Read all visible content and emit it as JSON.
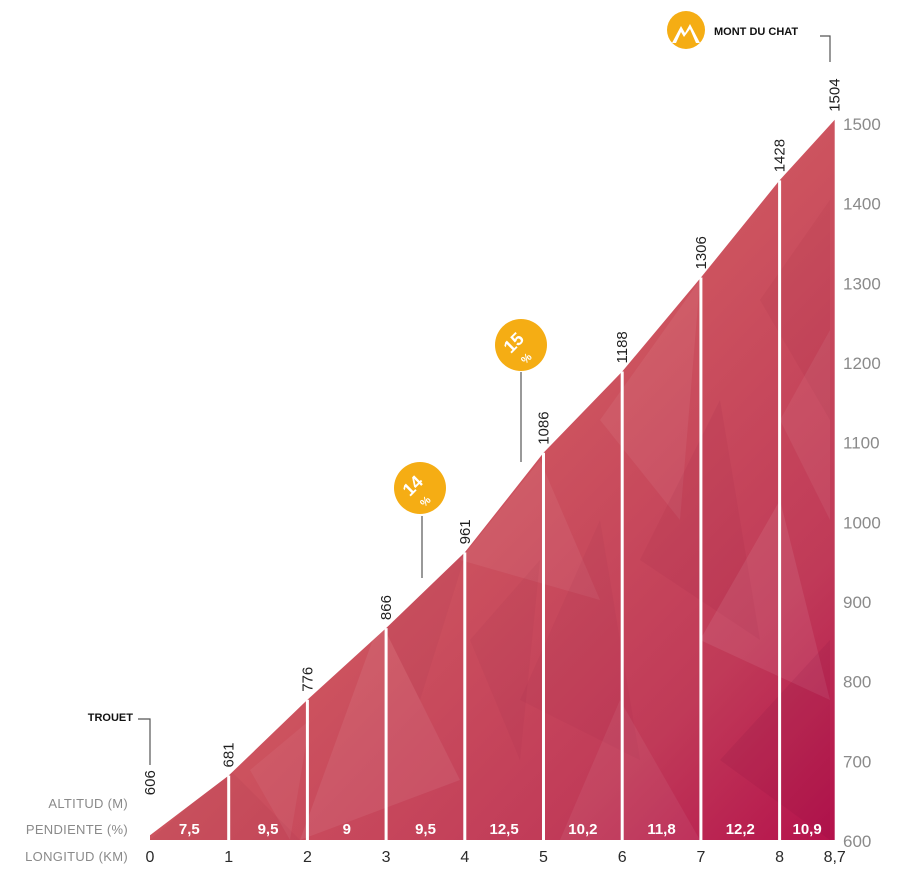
{
  "chart_data": {
    "type": "area",
    "x": [
      0,
      1,
      2,
      3,
      4,
      5,
      6,
      7,
      8,
      8.7
    ],
    "altitudes": [
      606,
      681,
      776,
      866,
      961,
      1086,
      1188,
      1306,
      1428,
      1504
    ],
    "altitude_labels": [
      "606",
      "681",
      "776",
      "866",
      "961",
      "1086",
      "1188",
      "1306",
      "1428",
      "1504"
    ],
    "x_tick_labels": [
      "0",
      "1",
      "2",
      "3",
      "4",
      "5",
      "6",
      "7",
      "8",
      "8,7"
    ],
    "gradients": [
      "7,5",
      "9,5",
      "9",
      "9,5",
      "12,5",
      "10,2",
      "11,8",
      "12,2",
      "10,9"
    ],
    "y_ticks": [
      1500,
      1400,
      1300,
      1200,
      1100,
      1000,
      900,
      800,
      700,
      600
    ],
    "y_tick_labels": [
      "1500",
      "1400",
      "1300",
      "1200",
      "1100",
      "1000",
      "900",
      "800",
      "700",
      "600"
    ],
    "ylim": [
      600,
      1500
    ],
    "xlim": [
      0,
      8.7
    ],
    "row_labels": {
      "altitude": "ALTITUD (M)",
      "gradient": "PENDIENTE (%)",
      "distance": "LONGITUD (KM)"
    },
    "start_label": "TROUET",
    "summit_label": "MONT DU CHAT",
    "max_gradient_badges": [
      {
        "km": 3.5,
        "number": "14",
        "percent": "%"
      },
      {
        "km": 4.75,
        "number": "15",
        "percent": "%"
      }
    ],
    "colors": {
      "fill_light": "#d9655a",
      "fill_dark": "#b8174e",
      "badge": "#f5ad14",
      "divider": "#ffffff"
    }
  }
}
